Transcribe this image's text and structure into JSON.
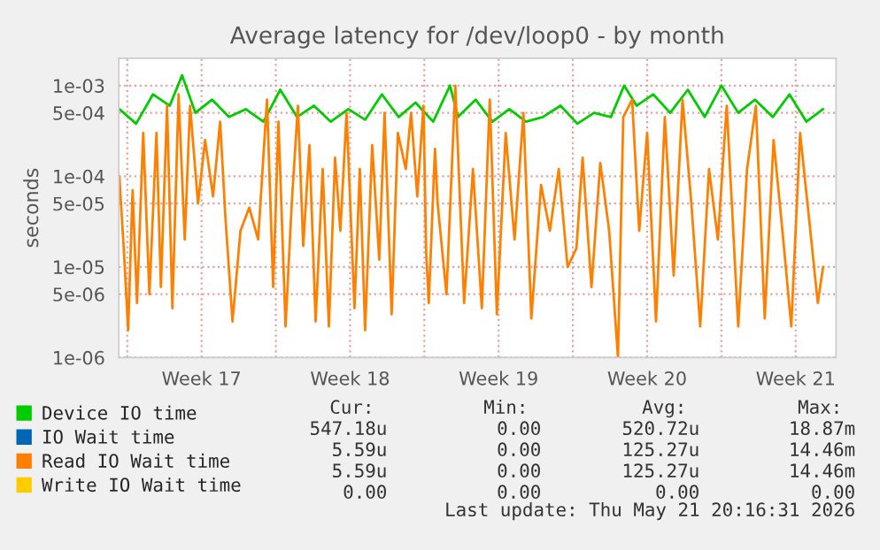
{
  "chart_data": {
    "type": "line",
    "title": "Average latency for /dev/loop0 - by month",
    "ylabel": "seconds",
    "log": "y",
    "grid": true,
    "legend": "bottom",
    "marker": "none",
    "line_style": "solid",
    "xlim": [
      "2026-04-18T14:24",
      "2026-05-22T09:36"
    ],
    "xticks": [
      {
        "value": "2026-04-19",
        "label": null
      },
      {
        "value": "2026-04-22T12:00",
        "label": "Week 17"
      },
      {
        "value": "2026-04-26",
        "label": null
      },
      {
        "value": "2026-04-29T12:00",
        "label": "Week 18"
      },
      {
        "value": "2026-05-03",
        "label": null
      },
      {
        "value": "2026-05-06T12:00",
        "label": "Week 19"
      },
      {
        "value": "2026-05-10",
        "label": null
      },
      {
        "value": "2026-05-13T12:00",
        "label": "Week 20"
      },
      {
        "value": "2026-05-17",
        "label": null
      },
      {
        "value": "2026-05-20T12:00",
        "label": "Week 21"
      }
    ],
    "ylim": [
      1e-06,
      0.002
    ],
    "yticks": [
      {
        "value": 1e-06,
        "label": "1e-06"
      },
      {
        "value": 5e-06,
        "label": "5e-06"
      },
      {
        "value": 1e-05,
        "label": "1e-05"
      },
      {
        "value": 5e-05,
        "label": "5e-05"
      },
      {
        "value": 0.0001,
        "label": "1e-04"
      },
      {
        "value": 0.0005,
        "label": "5e-04"
      },
      {
        "value": 0.001,
        "label": "1e-03"
      }
    ],
    "series": [
      {
        "name": "Device IO time",
        "color": "#00cc00",
        "x": [
          "2026-04-18T15:00",
          "2026-04-19T10:00",
          "2026-04-20T05:00",
          "2026-04-21T00:00",
          "2026-04-21T14:00",
          "2026-04-22T05:00",
          "2026-04-23T00:00",
          "2026-04-23T19:00",
          "2026-04-24T14:00",
          "2026-04-25T10:00",
          "2026-04-26T05:00",
          "2026-04-27T00:00",
          "2026-04-27T19:00",
          "2026-04-28T14:00",
          "2026-04-29T10:00",
          "2026-04-30T05:00",
          "2026-05-01T00:00",
          "2026-05-01T19:00",
          "2026-05-02T14:00",
          "2026-05-03T10:00",
          "2026-05-04T05:00",
          "2026-05-04T14:00",
          "2026-05-05T10:00",
          "2026-05-06T05:00",
          "2026-05-07T00:00",
          "2026-05-07T19:00",
          "2026-05-08T14:00",
          "2026-05-09T10:00",
          "2026-05-10T05:00",
          "2026-05-11T00:00",
          "2026-05-11T19:00",
          "2026-05-12T10:00",
          "2026-05-13T00:00",
          "2026-05-13T19:00",
          "2026-05-14T14:00",
          "2026-05-15T10:00",
          "2026-05-16T05:00",
          "2026-05-17T00:00",
          "2026-05-17T19:00",
          "2026-05-18T14:00",
          "2026-05-19T10:00",
          "2026-05-20T05:00",
          "2026-05-21T00:00",
          "2026-05-21T19:00"
        ],
        "values": [
          0.00055,
          0.00038,
          0.0008,
          0.0006,
          0.0013,
          0.0005,
          0.0007,
          0.00045,
          0.00055,
          0.0004,
          0.0009,
          0.00045,
          0.0006,
          0.0004,
          0.00055,
          0.00042,
          0.0008,
          0.00045,
          0.00065,
          0.0004,
          0.001,
          0.00045,
          0.0007,
          0.0004,
          0.00055,
          0.0004,
          0.00045,
          0.0006,
          0.00038,
          0.0005,
          0.00045,
          0.001,
          0.0006,
          0.0008,
          0.0005,
          0.0009,
          0.00045,
          0.001,
          0.0005,
          0.0007,
          0.00045,
          0.0008,
          0.0004,
          0.00055
        ]
      },
      {
        "name": "IO Wait time",
        "color": "#0066b3"
      },
      {
        "name": "Read IO Wait time",
        "color": "#ff8000",
        "x": [
          "2026-04-18T15:00",
          "2026-04-18T20:00",
          "2026-04-19T01:00",
          "2026-04-19T06:00",
          "2026-04-19T11:00",
          "2026-04-19T18:00",
          "2026-04-20T01:00",
          "2026-04-20T09:00",
          "2026-04-20T14:00",
          "2026-04-20T21:00",
          "2026-04-21T03:00",
          "2026-04-21T10:00",
          "2026-04-21T17:00",
          "2026-04-21T23:00",
          "2026-04-22T08:00",
          "2026-04-22T16:00",
          "2026-04-23T01:00",
          "2026-04-23T09:00",
          "2026-04-23T15:00",
          "2026-04-23T23:00",
          "2026-04-24T08:00",
          "2026-04-24T18:00",
          "2026-04-25T04:00",
          "2026-04-25T14:00",
          "2026-04-25T21:00",
          "2026-04-26T03:00",
          "2026-04-26T11:00",
          "2026-04-26T18:00",
          "2026-04-27T01:00",
          "2026-04-27T07:00",
          "2026-04-27T14:00",
          "2026-04-27T21:00",
          "2026-04-28T05:00",
          "2026-04-28T12:00",
          "2026-04-28T19:00",
          "2026-04-29T01:00",
          "2026-04-29T08:00",
          "2026-04-29T17:00",
          "2026-04-29T23:00",
          "2026-04-30T05:00",
          "2026-04-30T13:00",
          "2026-04-30T21:00",
          "2026-05-01T03:00",
          "2026-05-01T11:00",
          "2026-05-01T18:00",
          "2026-05-02T03:00",
          "2026-05-02T09:00",
          "2026-05-02T16:00",
          "2026-05-02T23:00",
          "2026-05-03T02:00",
          "2026-05-03T05:00",
          "2026-05-03T12:00",
          "2026-05-03T15:00",
          "2026-05-04T01:00",
          "2026-05-04T11:00",
          "2026-05-04T21:00",
          "2026-05-05T07:00",
          "2026-05-05T17:00",
          "2026-05-06T02:00",
          "2026-05-06T10:00",
          "2026-05-06T20:00",
          "2026-05-07T06:00",
          "2026-05-07T16:00",
          "2026-05-08T01:00",
          "2026-05-08T12:00",
          "2026-05-08T22:00",
          "2026-05-09T08:00",
          "2026-05-09T18:00",
          "2026-05-10T04:00",
          "2026-05-10T11:00",
          "2026-05-10T21:00",
          "2026-05-11T07:00",
          "2026-05-11T17:00",
          "2026-05-12T03:00",
          "2026-05-12T09:00",
          "2026-05-12T19:00",
          "2026-05-13T03:00",
          "2026-05-13T12:00",
          "2026-05-13T22:00",
          "2026-05-14T08:00",
          "2026-05-14T18:00",
          "2026-05-15T04:00",
          "2026-05-15T14:00",
          "2026-05-16T00:00",
          "2026-05-16T10:00",
          "2026-05-16T20:00",
          "2026-05-17T06:00",
          "2026-05-17T19:00",
          "2026-05-18T05:00",
          "2026-05-18T15:00",
          "2026-05-19T01:00",
          "2026-05-19T11:00",
          "2026-05-19T21:00",
          "2026-05-20T07:00",
          "2026-05-20T17:00",
          "2026-05-21T03:00",
          "2026-05-21T13:00",
          "2026-05-21T19:00"
        ],
        "values": [
          0.0001,
          1.6e-05,
          2e-06,
          7e-05,
          4e-06,
          0.0003,
          5e-06,
          0.0003,
          6e-06,
          0.0006,
          3.5e-06,
          0.0008,
          2e-05,
          0.0006,
          5e-05,
          0.00025,
          6e-05,
          0.0004,
          3.5e-05,
          2.5e-06,
          2.5e-05,
          4.5e-05,
          2e-05,
          0.0007,
          6e-06,
          0.0004,
          2.2e-06,
          5e-05,
          0.0006,
          1.7e-05,
          0.00022,
          2.5e-06,
          0.00012,
          2.2e-06,
          0.00016,
          2.5e-05,
          0.0005,
          3.5e-06,
          0.00012,
          2e-06,
          0.00022,
          1.2e-05,
          0.0005,
          3e-06,
          0.0003,
          0.00012,
          0.0005,
          6e-05,
          0.0006,
          1.5e-05,
          4e-06,
          0.0002,
          5e-05,
          5e-06,
          0.001,
          4e-06,
          0.00012,
          3.5e-06,
          0.0007,
          3e-06,
          0.0003,
          2e-05,
          0.0005,
          2.7e-06,
          8e-05,
          2.5e-05,
          0.00012,
          1e-05,
          1.6e-05,
          0.00016,
          6e-06,
          0.00014,
          2.5e-05,
          1e-06,
          0.00045,
          0.0007,
          2.5e-05,
          0.0003,
          2.5e-06,
          0.00045,
          8e-06,
          0.0007,
          5e-05,
          2.2e-06,
          0.00012,
          2e-05,
          0.0006,
          2.2e-06,
          0.00012,
          0.0006,
          2.7e-06,
          0.00025,
          2.5e-05,
          2.2e-06,
          0.0003,
          3.5e-05,
          4e-06,
          1e-05
        ]
      },
      {
        "name": "Write IO Wait time",
        "color": "#ffcc00"
      }
    ],
    "annotations": [
      "Cur:",
      "Min:",
      "Avg:",
      "Max:",
      "547.18u",
      "0.00",
      "520.72u",
      "18.87m",
      "5.59u",
      "0.00",
      "125.27u",
      "14.46m",
      "5.59u",
      "0.00",
      "125.27u",
      "14.46m",
      "0.00",
      "0.00",
      "0.00",
      "0.00",
      "Last update: Thu May 21 20:16:31 2026"
    ]
  }
}
